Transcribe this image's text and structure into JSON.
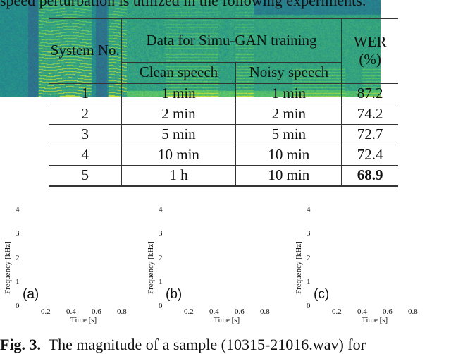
{
  "top_text": "speed perturbation is utilized in the following experiments.",
  "table": {
    "headers": {
      "system": "System No.",
      "data": "Data for Simu-GAN training",
      "clean": "Clean speech",
      "noisy": "Noisy speech",
      "wer": "WER (%)"
    },
    "rows": [
      {
        "no": "1",
        "clean": "1 min",
        "noisy": "1 min",
        "wer": "87.2"
      },
      {
        "no": "2",
        "clean": "2 min",
        "noisy": "2 min",
        "wer": "74.2"
      },
      {
        "no": "3",
        "clean": "5 min",
        "noisy": "5 min",
        "wer": "72.7"
      },
      {
        "no": "4",
        "clean": "10 min",
        "noisy": "10 min",
        "wer": "72.4"
      },
      {
        "no": "5",
        "clean": "1 h",
        "noisy": "10 min",
        "wer": "68.9",
        "wer_bold": true
      }
    ]
  },
  "spectrograms": {
    "ylabel": "Frequency [kHz]",
    "xlabel": "Time [s]",
    "yticks": [
      "0",
      "1",
      "2",
      "3",
      "4"
    ],
    "xticks": [
      "0.2",
      "0.4",
      "0.6",
      "0.8"
    ],
    "panels": [
      "(a)",
      "(b)",
      "(c)"
    ]
  },
  "caption": {
    "label": "Fig. 3.",
    "text": "The magnitude of a sample (10315-21016.wav) for"
  }
}
